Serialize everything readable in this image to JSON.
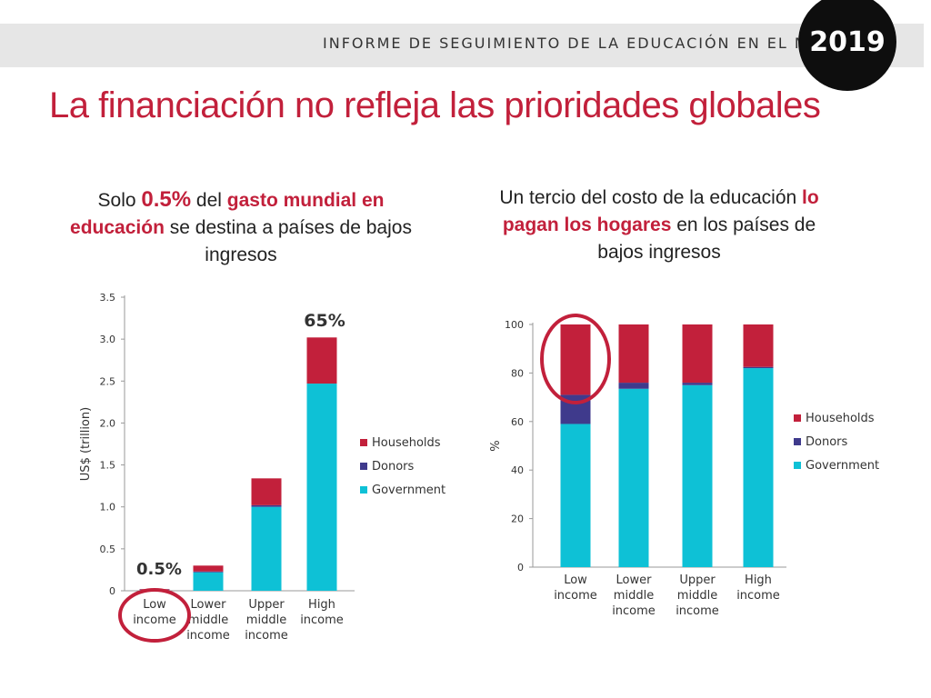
{
  "header": {
    "report_title": "INFORME DE SEGUIMIENTO DE LA EDUCACIÓN EN EL MUNDO",
    "year": "2019"
  },
  "main_title": "La financiación no refleja las prioridades globales",
  "left_caption": {
    "p1": "Solo ",
    "p2": "0.5%",
    "p3": " del ",
    "p4": "gasto mundial en educación",
    "p5": " se destina a países de bajos ingresos"
  },
  "right_caption": {
    "p1": "Un tercio del costo de la educación ",
    "p2": "lo pagan los hogares",
    "p3": " en los países de bajos ingresos"
  },
  "colors": {
    "households": "#c2203b",
    "donors": "#3f3a8c",
    "government": "#0ec1d6",
    "circle": "#c2203b"
  },
  "chart_data": [
    {
      "type": "bar",
      "stacked": true,
      "title": "",
      "xlabel": "",
      "ylabel": "US$ (trillion)",
      "ylim": [
        0,
        3.5
      ],
      "yticks": [
        "0",
        "0.5",
        "1.0",
        "1.5",
        "2.0",
        "2.5",
        "3.0",
        "3.5"
      ],
      "categories": [
        "Low income",
        "Lower middle income",
        "Upper middle income",
        "High income"
      ],
      "series": [
        {
          "name": "Government",
          "values": [
            0.01,
            0.22,
            1.0,
            2.47
          ]
        },
        {
          "name": "Donors",
          "values": [
            0.005,
            0.01,
            0.02,
            0.0
          ]
        },
        {
          "name": "Households",
          "values": [
            0.005,
            0.07,
            0.32,
            0.55
          ]
        }
      ],
      "legend": [
        "Households",
        "Donors",
        "Government"
      ],
      "legend_position": "right",
      "annotations": [
        "0.5%",
        "65%"
      ]
    },
    {
      "type": "bar",
      "stacked": true,
      "title": "",
      "xlabel": "",
      "ylabel": "%",
      "ylim": [
        0,
        100
      ],
      "yticks": [
        "0",
        "20",
        "40",
        "60",
        "80",
        "100"
      ],
      "categories": [
        "Low income",
        "Lower middle income",
        "Upper middle income",
        "High income"
      ],
      "series": [
        {
          "name": "Government",
          "values": [
            59,
            73.5,
            75,
            82
          ]
        },
        {
          "name": "Donors",
          "values": [
            12,
            2.5,
            1,
            0.5
          ]
        },
        {
          "name": "Households",
          "values": [
            29,
            24,
            24,
            17.5
          ]
        }
      ],
      "legend": [
        "Households",
        "Donors",
        "Government"
      ],
      "legend_position": "right"
    }
  ]
}
